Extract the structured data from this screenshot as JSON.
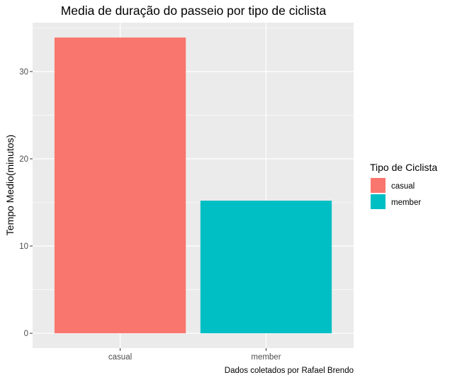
{
  "chart_data": {
    "type": "bar",
    "title": "Media de duração do passeio por tipo de ciclista",
    "xlabel": "",
    "ylabel": "Tempo Medio(minutos)",
    "caption": "Dados coletados por Rafael Brendo",
    "categories": [
      "casual",
      "member"
    ],
    "values": [
      33.9,
      15.2
    ],
    "colors": [
      "#F8766D",
      "#00BFC4"
    ],
    "ylim": [
      -1.7,
      35.6
    ],
    "yticks": [
      0,
      10,
      20,
      30
    ],
    "grid": true,
    "panel_background": "#EBEBEB",
    "legend": {
      "title": "Tipo de Ciclista",
      "position": "right",
      "entries": [
        {
          "label": "casual",
          "color": "#F8766D"
        },
        {
          "label": "member",
          "color": "#00BFC4"
        }
      ]
    }
  }
}
